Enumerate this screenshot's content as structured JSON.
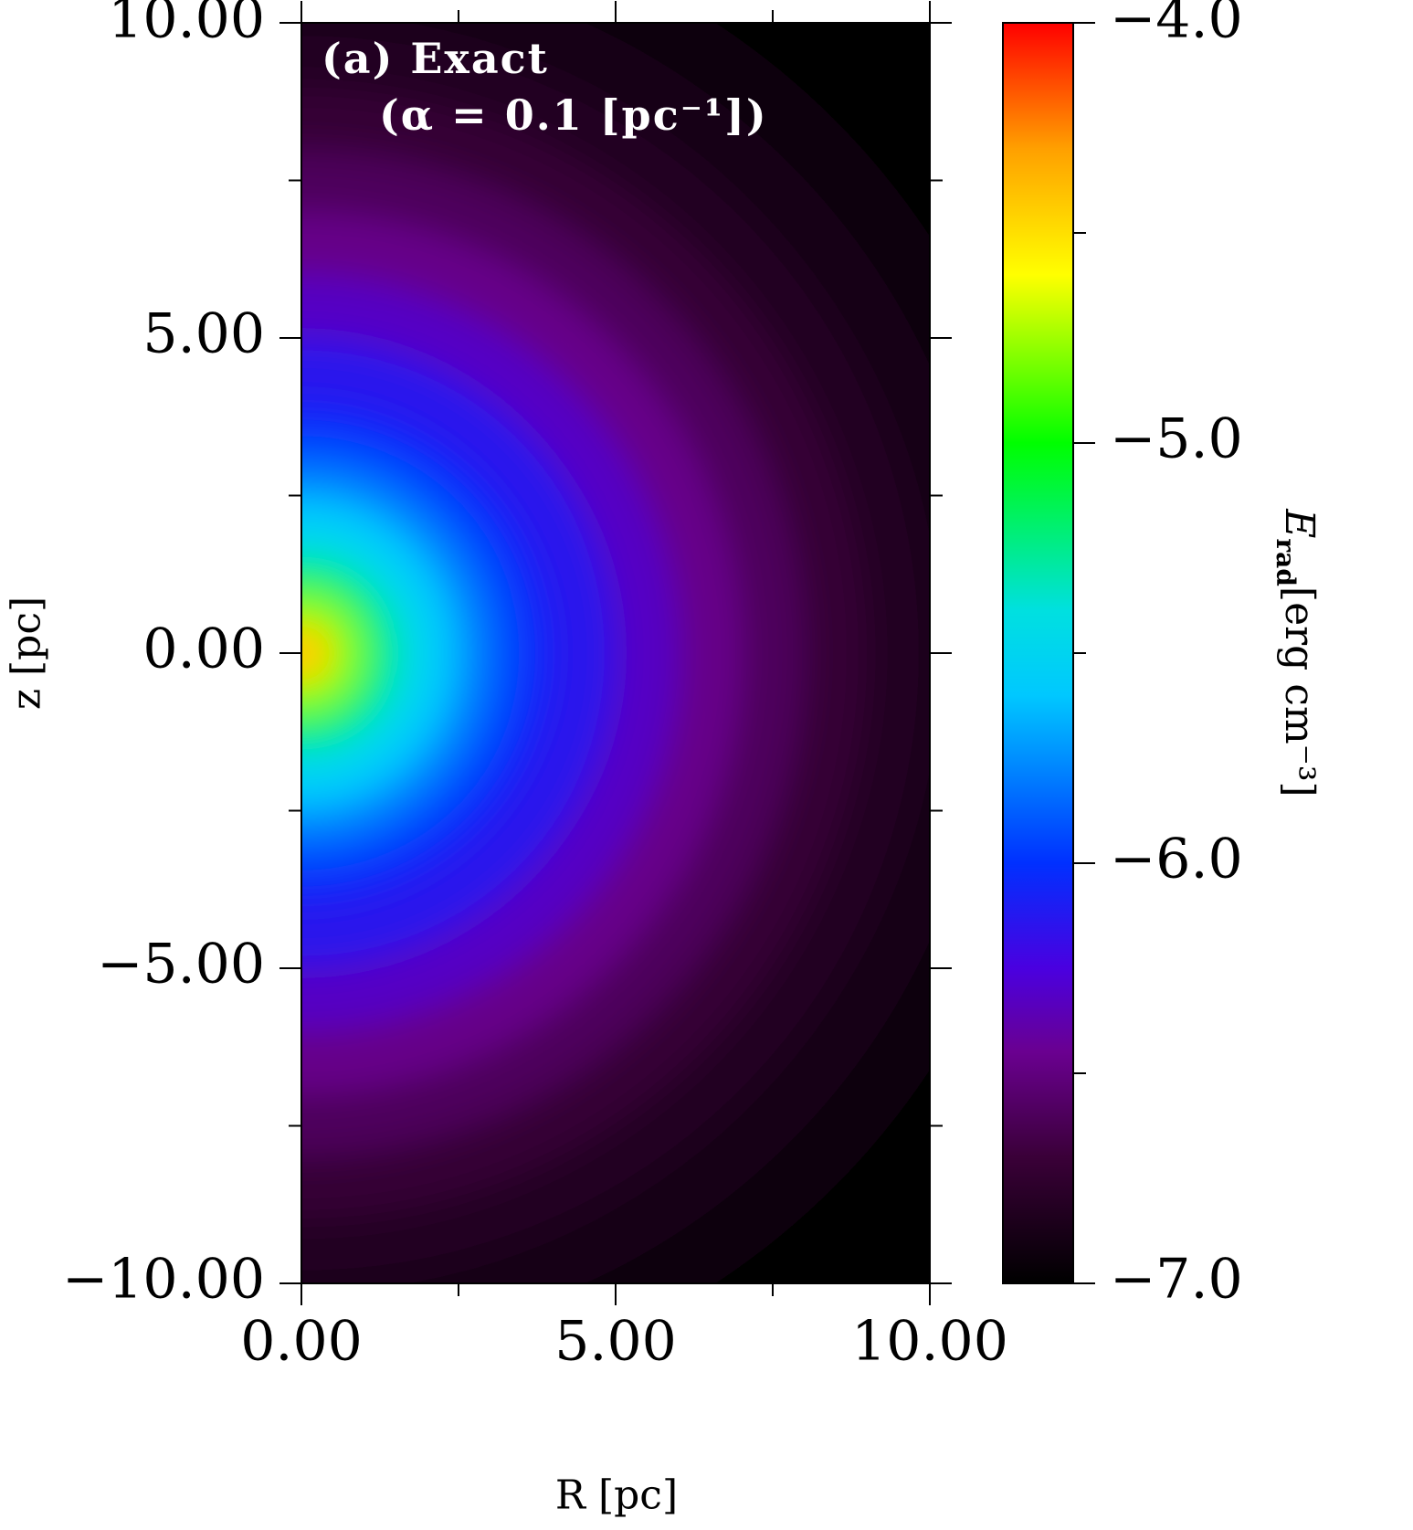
{
  "chart_data": {
    "type": "radial-heatmap",
    "title": "(a) Exact",
    "subtitle": "(α = 0.1 [pc⁻¹])",
    "x_label": "R [pc]",
    "y_label": "z [pc]",
    "colorbar_label": {
      "symbol": "E",
      "subscript": "rad",
      "unit": "[erg cm⁻³]"
    },
    "xlim": [
      0,
      10
    ],
    "ylim": [
      -10,
      10
    ],
    "xticks": [
      {
        "value": 0,
        "label": "0.00"
      },
      {
        "value": 5,
        "label": "5.00"
      },
      {
        "value": 10,
        "label": "10.00"
      }
    ],
    "xminorticks": [
      2.5,
      7.5
    ],
    "yticks": [
      {
        "value": -10,
        "label": "−10.00"
      },
      {
        "value": -5,
        "label": "−5.00"
      },
      {
        "value": 0,
        "label": "0.00"
      },
      {
        "value": 5,
        "label": "5.00"
      },
      {
        "value": 10,
        "label": "10.00"
      }
    ],
    "yminorticks": [
      -7.5,
      -2.5,
      2.5,
      7.5
    ],
    "clim": [
      -7,
      -4
    ],
    "cticks": [
      {
        "value": -7,
        "label": "−7.0"
      },
      {
        "value": -6,
        "label": "−6.0"
      },
      {
        "value": -5,
        "label": "−5.0"
      },
      {
        "value": -4,
        "label": "−4.0"
      }
    ],
    "cminorticks": [
      -6.5,
      -5.5,
      -4.5
    ],
    "colormap": [
      {
        "value": -7,
        "color": "#000000"
      },
      {
        "value": -6.7,
        "color": "#3a0038"
      },
      {
        "value": -6.45,
        "color": "#6a0090"
      },
      {
        "value": -6.25,
        "color": "#4a00e0"
      },
      {
        "value": -6.0,
        "color": "#0030ff"
      },
      {
        "value": -5.6,
        "color": "#00c8ff"
      },
      {
        "value": -5.4,
        "color": "#00e0e0"
      },
      {
        "value": -5.0,
        "color": "#00ff00"
      },
      {
        "value": -4.6,
        "color": "#ffff00"
      },
      {
        "value": -4.3,
        "color": "#ffa000"
      },
      {
        "value": -4.0,
        "color": "#ff0000"
      }
    ],
    "profile_r": [
      0,
      0.5,
      1,
      1.5,
      2,
      2.5,
      3,
      3.5,
      4,
      5,
      6,
      7,
      8,
      9,
      10,
      11,
      12,
      13,
      14
    ],
    "profile_values": [
      -4.3,
      -4.45,
      -4.8,
      -5.2,
      -5.45,
      -5.6,
      -5.78,
      -5.92,
      -6.05,
      -6.15,
      -6.32,
      -6.47,
      -6.6,
      -6.72,
      -6.82,
      -6.9,
      -6.95,
      -6.98,
      -7.0
    ]
  }
}
